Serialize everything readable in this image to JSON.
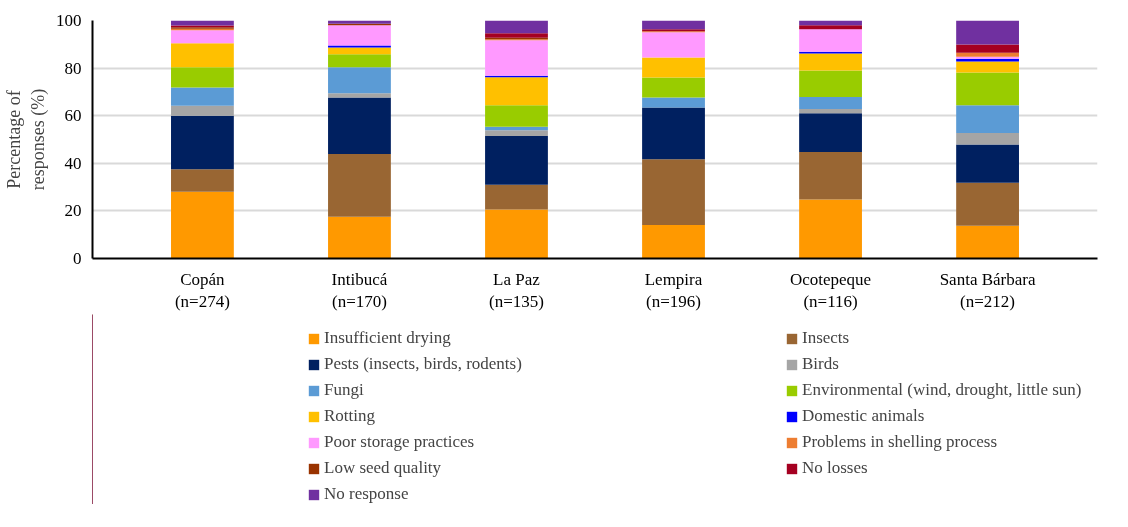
{
  "chart_data": {
    "type": "bar",
    "stacked": true,
    "ylabel": "Percentage of\nresponses (%)",
    "categories": [
      "Copán\n(n=274)",
      "Intibucá\n(n=170)",
      "La Paz\n(n=135)",
      "Lempira\n(n=196)",
      "Ocotepeque\n(n=116)",
      "Santa Bárbara\n(n=212)"
    ],
    "ylim": [
      0,
      100
    ],
    "yticks": [
      0,
      20,
      40,
      60,
      80,
      100
    ],
    "grid": "y",
    "legend": "bottom",
    "series": [
      {
        "name": "Insufficient drying",
        "color": "#ff9900",
        "values": [
          28.0,
          17.5,
          20.6,
          14.1,
          24.8,
          13.8
        ]
      },
      {
        "name": "Insects",
        "color": "#996633",
        "values": [
          9.5,
          26.4,
          10.4,
          27.6,
          20.0,
          18.0
        ]
      },
      {
        "name": "Pests (insects, birds, rodents)",
        "color": "#002060",
        "values": [
          22.5,
          23.7,
          20.5,
          21.7,
          16.2,
          16.1
        ]
      },
      {
        "name": "Birds",
        "color": "#a5a5a5",
        "values": [
          4.2,
          1.8,
          2.4,
          0,
          1.8,
          4.8
        ]
      },
      {
        "name": "Fungi",
        "color": "#5b9bd5",
        "values": [
          7.6,
          11.0,
          1.5,
          4.2,
          5.1,
          11.7
        ]
      },
      {
        "name": "Environmental (wind, drought, little sun)",
        "color": "#99cc00",
        "values": [
          8.6,
          5.4,
          9.0,
          8.5,
          11.1,
          13.8
        ]
      },
      {
        "name": "Rotting",
        "color": "#ffc000",
        "values": [
          10.0,
          2.9,
          11.8,
          8.4,
          7.1,
          4.6
        ]
      },
      {
        "name": "Domestic animals",
        "color": "#0000ff",
        "values": [
          0,
          0.8,
          0.6,
          0,
          0.8,
          1.1
        ]
      },
      {
        "name": "Poor storage practices",
        "color": "#ff99ff",
        "values": [
          5.5,
          8.5,
          14.9,
          10.6,
          9.4,
          0.9
        ]
      },
      {
        "name": "Problems in shelling process",
        "color": "#ed7d31",
        "values": [
          0.6,
          0,
          0.4,
          0.4,
          0,
          1.7
        ]
      },
      {
        "name": "Low seed quality",
        "color": "#993300",
        "values": [
          0.7,
          0.6,
          0.7,
          0,
          0,
          0
        ]
      },
      {
        "name": "No losses",
        "color": "#a50021",
        "values": [
          0.7,
          0,
          1.8,
          0.8,
          1.7,
          3.4
        ]
      },
      {
        "name": "No response",
        "color": "#7030a0",
        "values": [
          2.1,
          1.4,
          5.4,
          3.7,
          2.0,
          10.1
        ]
      }
    ]
  }
}
